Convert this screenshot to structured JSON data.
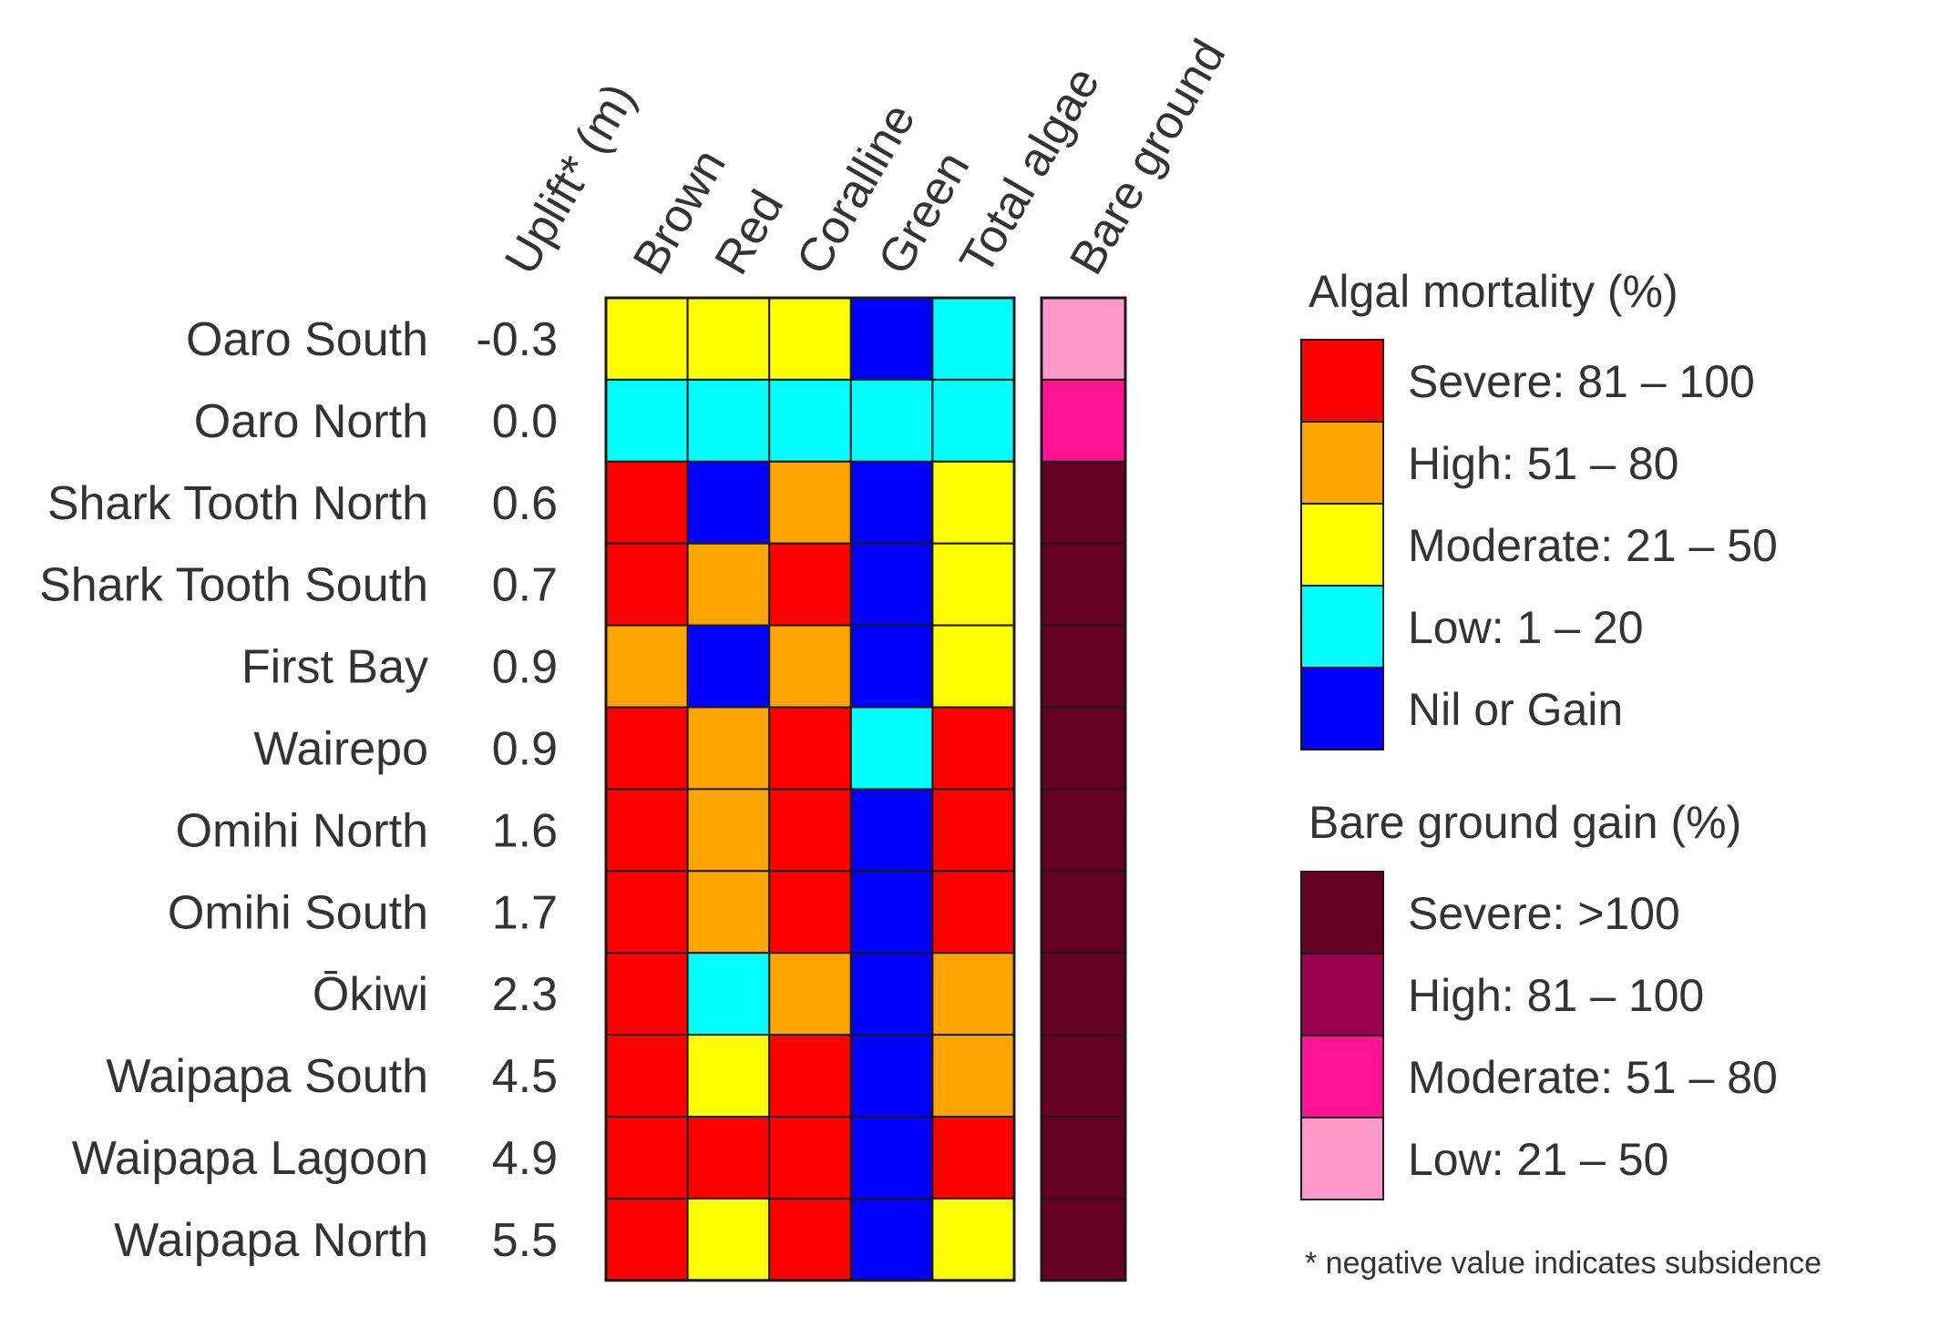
{
  "chart_data": {
    "type": "heatmap",
    "uplift_header": "Uplift* (m)",
    "columns": [
      "Brown",
      "Red",
      "Coralline",
      "Green",
      "Total algae"
    ],
    "bare_column": "Bare ground",
    "rows": [
      {
        "site": "Oaro South",
        "uplift": "-0.3",
        "algae": [
          "moderate",
          "moderate",
          "moderate",
          "nil",
          "low"
        ],
        "bare": "low"
      },
      {
        "site": "Oaro North",
        "uplift": "0.0",
        "algae": [
          "low",
          "low",
          "low",
          "low",
          "low"
        ],
        "bare": "moderate"
      },
      {
        "site": "Shark Tooth North",
        "uplift": "0.6",
        "algae": [
          "severe",
          "nil",
          "high",
          "nil",
          "moderate"
        ],
        "bare": "severe"
      },
      {
        "site": "Shark Tooth South",
        "uplift": "0.7",
        "algae": [
          "severe",
          "high",
          "severe",
          "nil",
          "moderate"
        ],
        "bare": "severe"
      },
      {
        "site": "First Bay",
        "uplift": "0.9",
        "algae": [
          "high",
          "nil",
          "high",
          "nil",
          "moderate"
        ],
        "bare": "severe"
      },
      {
        "site": "Wairepo",
        "uplift": "0.9",
        "algae": [
          "severe",
          "high",
          "severe",
          "low",
          "severe"
        ],
        "bare": "severe"
      },
      {
        "site": "Omihi North",
        "uplift": "1.6",
        "algae": [
          "severe",
          "high",
          "severe",
          "nil",
          "severe"
        ],
        "bare": "severe"
      },
      {
        "site": "Omihi South",
        "uplift": "1.7",
        "algae": [
          "severe",
          "high",
          "severe",
          "nil",
          "severe"
        ],
        "bare": "severe"
      },
      {
        "site": "Ōkiwi",
        "uplift": "2.3",
        "algae": [
          "severe",
          "low",
          "high",
          "nil",
          "high"
        ],
        "bare": "severe"
      },
      {
        "site": "Waipapa South",
        "uplift": "4.5",
        "algae": [
          "severe",
          "moderate",
          "severe",
          "nil",
          "high"
        ],
        "bare": "severe"
      },
      {
        "site": "Waipapa Lagoon",
        "uplift": "4.9",
        "algae": [
          "severe",
          "severe",
          "severe",
          "nil",
          "severe"
        ],
        "bare": "severe"
      },
      {
        "site": "Waipapa North",
        "uplift": "5.5",
        "algae": [
          "severe",
          "moderate",
          "severe",
          "nil",
          "moderate"
        ],
        "bare": "severe"
      }
    ],
    "legend_algal": {
      "title": "Algal mortality (%)",
      "items": [
        {
          "key": "severe",
          "label": "Severe: 81 – 100",
          "color": "#ff0000"
        },
        {
          "key": "high",
          "label": "High: 51 – 80",
          "color": "#ffa500"
        },
        {
          "key": "moderate",
          "label": "Moderate: 21 – 50",
          "color": "#ffff00"
        },
        {
          "key": "low",
          "label": "Low: 1 – 20",
          "color": "#00ffff"
        },
        {
          "key": "nil",
          "label": "Nil or Gain",
          "color": "#0000ff"
        }
      ]
    },
    "legend_bare": {
      "title": "Bare ground gain (%)",
      "items": [
        {
          "key": "severe",
          "label": "Severe: >100",
          "color": "#660022"
        },
        {
          "key": "high",
          "label": "High: 81 – 100",
          "color": "#99004d"
        },
        {
          "key": "moderate",
          "label": "Moderate: 51 – 80",
          "color": "#ff1493"
        },
        {
          "key": "low",
          "label": "Low: 21 – 50",
          "color": "#ff99cc"
        }
      ]
    },
    "footnote": "* negative value indicates subsidence"
  }
}
